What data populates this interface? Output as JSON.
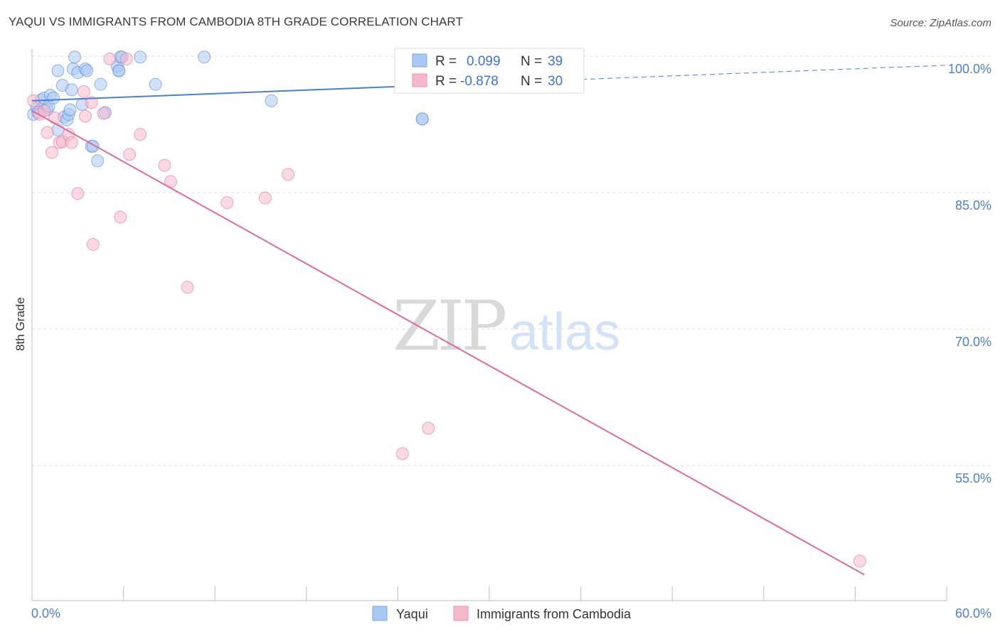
{
  "header": {
    "title": "YAQUI VS IMMIGRANTS FROM CAMBODIA 8TH GRADE CORRELATION CHART",
    "source": "Source: ZipAtlas.com"
  },
  "watermark": {
    "zip": "ZIP",
    "atlas": "atlas"
  },
  "stats": [
    {
      "r_label": "R =",
      "r_value": "0.099",
      "n_label": "N =",
      "n_value": "39",
      "color": "#a9c8f3"
    },
    {
      "r_label": "R =",
      "r_value": "-0.878",
      "n_label": "N =",
      "n_value": "30",
      "color": "#f6b9cb"
    }
  ],
  "legend": [
    {
      "label": "Yaqui",
      "color": "#a9c8f3"
    },
    {
      "label": "Immigrants from Cambodia",
      "color": "#f6b9cb"
    }
  ],
  "chart_data": {
    "type": "scatter",
    "title": "YAQUI VS IMMIGRANTS FROM CAMBODIA 8TH GRADE CORRELATION CHART",
    "xlabel": "",
    "ylabel": "8th Grade",
    "xlim": [
      0,
      60
    ],
    "ylim": [
      43,
      101
    ],
    "x_tick_labels": [
      "0.0%",
      "60.0%"
    ],
    "y_ticks": [
      55,
      70,
      85,
      100
    ],
    "y_tick_labels": [
      "55.0%",
      "70.0%",
      "85.0%",
      "100.0%"
    ],
    "grid": true,
    "legend_position": "bottom-center",
    "series": [
      {
        "name": "Yaqui",
        "color": "#4a7fd6",
        "fill": "#a9c8f3",
        "points": [
          [
            0.1,
            93.6
          ],
          [
            0.3,
            94.3
          ],
          [
            0.4,
            93.8
          ],
          [
            0.6,
            95.2
          ],
          [
            0.8,
            95.4
          ],
          [
            1.0,
            94.1
          ],
          [
            1.1,
            94.5
          ],
          [
            1.2,
            95.7
          ],
          [
            1.4,
            95.4
          ],
          [
            1.7,
            98.4
          ],
          [
            1.7,
            91.9
          ],
          [
            2.0,
            96.8
          ],
          [
            2.1,
            93.3
          ],
          [
            2.3,
            93.0
          ],
          [
            2.4,
            93.6
          ],
          [
            2.5,
            94.1
          ],
          [
            2.6,
            96.3
          ],
          [
            2.7,
            98.6
          ],
          [
            2.8,
            99.9
          ],
          [
            3.0,
            98.2
          ],
          [
            3.3,
            94.7
          ],
          [
            3.5,
            98.6
          ],
          [
            3.6,
            98.4
          ],
          [
            3.9,
            90.1
          ],
          [
            4.0,
            90.1
          ],
          [
            4.3,
            88.5
          ],
          [
            4.5,
            96.9
          ],
          [
            4.8,
            93.8
          ],
          [
            5.6,
            98.9
          ],
          [
            5.7,
            98.4
          ],
          [
            5.8,
            99.9
          ],
          [
            5.9,
            99.9
          ],
          [
            7.1,
            99.9
          ],
          [
            8.1,
            96.9
          ],
          [
            11.3,
            99.9
          ],
          [
            15.7,
            95.1
          ],
          [
            25.6,
            93.1
          ],
          [
            25.6,
            93.1
          ],
          [
            5.7,
            98.4
          ]
        ],
        "trend": {
          "x": [
            0,
            60
          ],
          "y": [
            95.1,
            99.0
          ],
          "solid_until_x": 26
        }
      },
      {
        "name": "Immigrants from Cambodia",
        "color": "#e06a98",
        "fill": "#f6b9cb",
        "points": [
          [
            0.1,
            95.1
          ],
          [
            0.5,
            93.6
          ],
          [
            0.8,
            94.0
          ],
          [
            1.0,
            91.6
          ],
          [
            1.3,
            89.4
          ],
          [
            1.5,
            93.2
          ],
          [
            1.8,
            90.5
          ],
          [
            2.0,
            90.6
          ],
          [
            2.4,
            91.4
          ],
          [
            2.6,
            90.5
          ],
          [
            3.0,
            84.9
          ],
          [
            3.4,
            96.1
          ],
          [
            3.5,
            93.4
          ],
          [
            3.9,
            94.9
          ],
          [
            4.0,
            79.3
          ],
          [
            4.7,
            93.7
          ],
          [
            5.1,
            99.7
          ],
          [
            5.8,
            82.3
          ],
          [
            6.2,
            99.7
          ],
          [
            6.4,
            89.2
          ],
          [
            7.1,
            91.4
          ],
          [
            8.7,
            88.0
          ],
          [
            9.1,
            86.2
          ],
          [
            10.2,
            74.6
          ],
          [
            12.8,
            83.9
          ],
          [
            15.3,
            84.4
          ],
          [
            16.8,
            87.0
          ],
          [
            24.3,
            56.3
          ],
          [
            26.0,
            59.1
          ],
          [
            54.3,
            44.5
          ]
        ],
        "trend": {
          "x": [
            0,
            54.6
          ],
          "y": [
            94.0,
            43.0
          ],
          "solid_until_x": 54.6
        }
      }
    ]
  }
}
